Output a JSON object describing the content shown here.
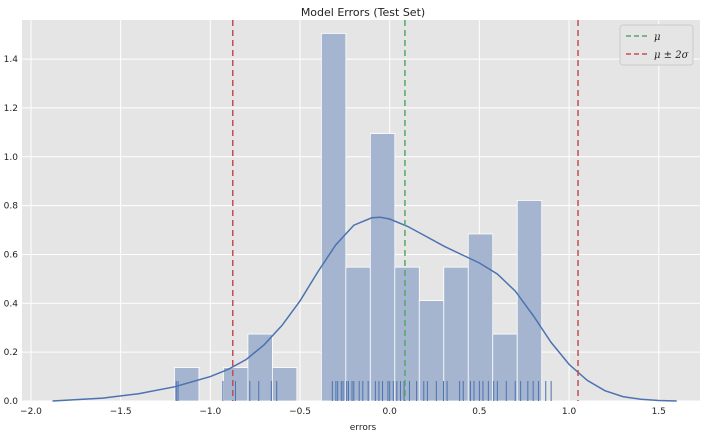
{
  "chart_data": {
    "type": "bar",
    "title": "Model Errors (Test Set)",
    "xlabel": "errors",
    "ylabel": "",
    "xlim": [
      -2.05,
      1.73
    ],
    "ylim": [
      0,
      1.56
    ],
    "grid": true,
    "legend_position": "top-right",
    "x_ticks": [
      -2.0,
      -1.5,
      -1.0,
      -0.5,
      0.0,
      0.5,
      1.0,
      1.5
    ],
    "x_tick_labels": [
      "−2.0",
      "−1.5",
      "−1.0",
      "−0.5",
      "0.0",
      "0.5",
      "1.0",
      "1.5"
    ],
    "y_ticks": [
      0.0,
      0.2,
      0.4,
      0.6,
      0.8,
      1.0,
      1.2,
      1.4
    ],
    "y_tick_labels": [
      "0.0",
      "0.2",
      "0.4",
      "0.6",
      "0.8",
      "1.0",
      "1.2",
      "1.4"
    ],
    "histogram": {
      "bin_start": -1.2,
      "bin_width": 0.1365,
      "values": [
        0.137,
        0,
        0.137,
        0.274,
        0.137,
        0,
        1.505,
        0.548,
        1.095,
        0.548,
        0.411,
        0.548,
        0.684,
        0.274,
        0.821
      ]
    },
    "kde_curve": {
      "x": [
        -1.88,
        -1.6,
        -1.4,
        -1.2,
        -1.0,
        -0.9,
        -0.8,
        -0.7,
        -0.6,
        -0.5,
        -0.4,
        -0.3,
        -0.2,
        -0.1,
        -0.05,
        0.0,
        0.1,
        0.2,
        0.3,
        0.4,
        0.5,
        0.6,
        0.7,
        0.8,
        0.9,
        1.0,
        1.1,
        1.2,
        1.3,
        1.4,
        1.5,
        1.6
      ],
      "y": [
        0.0,
        0.012,
        0.03,
        0.058,
        0.1,
        0.13,
        0.17,
        0.23,
        0.31,
        0.41,
        0.53,
        0.64,
        0.72,
        0.75,
        0.752,
        0.745,
        0.715,
        0.675,
        0.635,
        0.6,
        0.565,
        0.52,
        0.45,
        0.35,
        0.24,
        0.15,
        0.085,
        0.042,
        0.018,
        0.007,
        0.002,
        0.0
      ]
    },
    "rug_x": [
      -1.19,
      -1.18,
      -0.93,
      -0.86,
      -0.78,
      -0.73,
      -0.66,
      -0.63,
      -0.32,
      -0.3,
      -0.29,
      -0.27,
      -0.26,
      -0.24,
      -0.23,
      -0.21,
      -0.2,
      -0.17,
      -0.15,
      -0.12,
      -0.08,
      -0.06,
      -0.04,
      -0.01,
      0.0,
      0.02,
      0.04,
      0.06,
      0.08,
      0.11,
      0.15,
      0.19,
      0.21,
      0.26,
      0.3,
      0.32,
      0.39,
      0.41,
      0.45,
      0.47,
      0.5,
      0.52,
      0.55,
      0.58,
      0.6,
      0.65,
      0.7,
      0.73,
      0.77,
      0.8,
      0.83,
      0.87,
      0.9
    ],
    "vlines": [
      {
        "kind": "mean",
        "x": 0.085,
        "color": "#55a868"
      },
      {
        "kind": "band",
        "x": -0.875,
        "color": "#c44e52"
      },
      {
        "kind": "band",
        "x": 1.05,
        "color": "#c44e52"
      }
    ],
    "legend": [
      {
        "label": "μ",
        "color": "#55a868"
      },
      {
        "label": "μ ± 2σ",
        "color": "#c44e52"
      }
    ],
    "colors": {
      "background": "#e5e5e5",
      "grid": "#ffffff",
      "bars": "#a5b5cf",
      "kde": "#4c72b0",
      "rug": "#4c72b0"
    }
  }
}
